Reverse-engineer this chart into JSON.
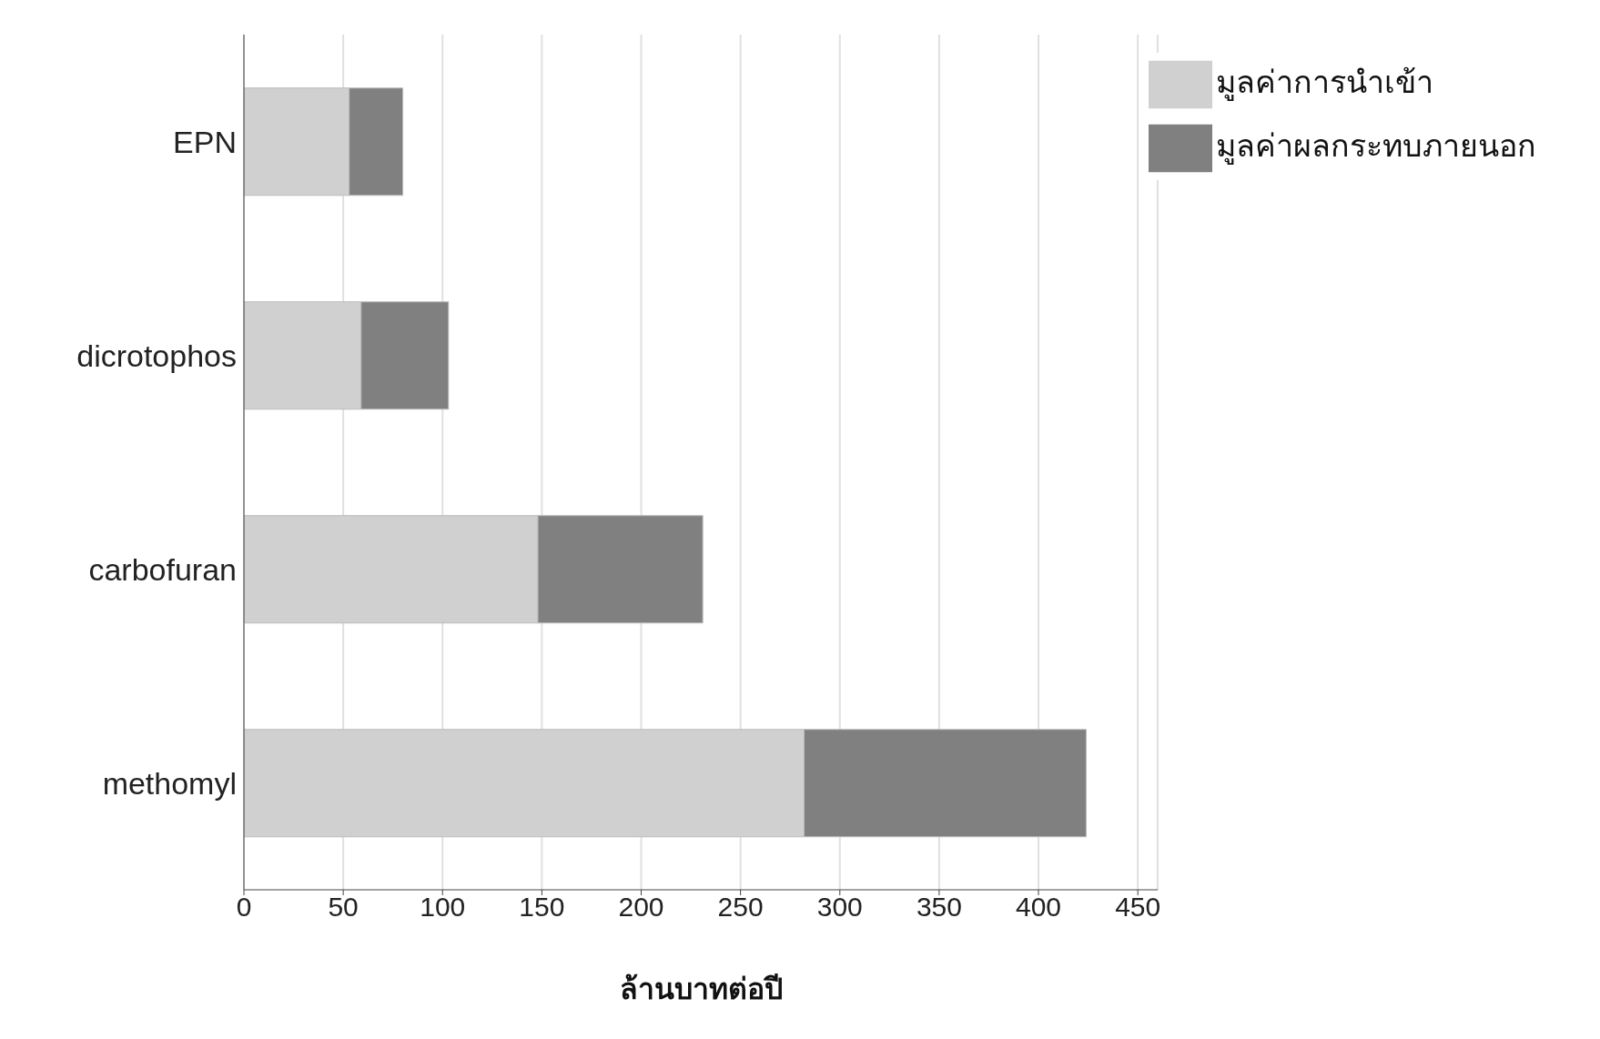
{
  "chart_data": {
    "type": "bar",
    "orientation": "horizontal",
    "stacked": true,
    "xlabel": "ล้านบาทต่อปี",
    "categories": [
      "EPN",
      "dicrotophos",
      "carbofuran",
      "methomyl"
    ],
    "series": [
      {
        "name": "มูลค่าการนำเข้า",
        "color": "#d0d0d0",
        "values": [
          53,
          59,
          148,
          282
        ]
      },
      {
        "name": "มูลค่าผลกระทบภายนอก",
        "color": "#808080",
        "values": [
          27,
          44,
          83,
          142
        ]
      }
    ],
    "xlim": [
      0,
      460
    ],
    "xticks": [
      0,
      50,
      100,
      150,
      200,
      250,
      300,
      350,
      400,
      450
    ],
    "grid": "x",
    "legend": "top right"
  }
}
